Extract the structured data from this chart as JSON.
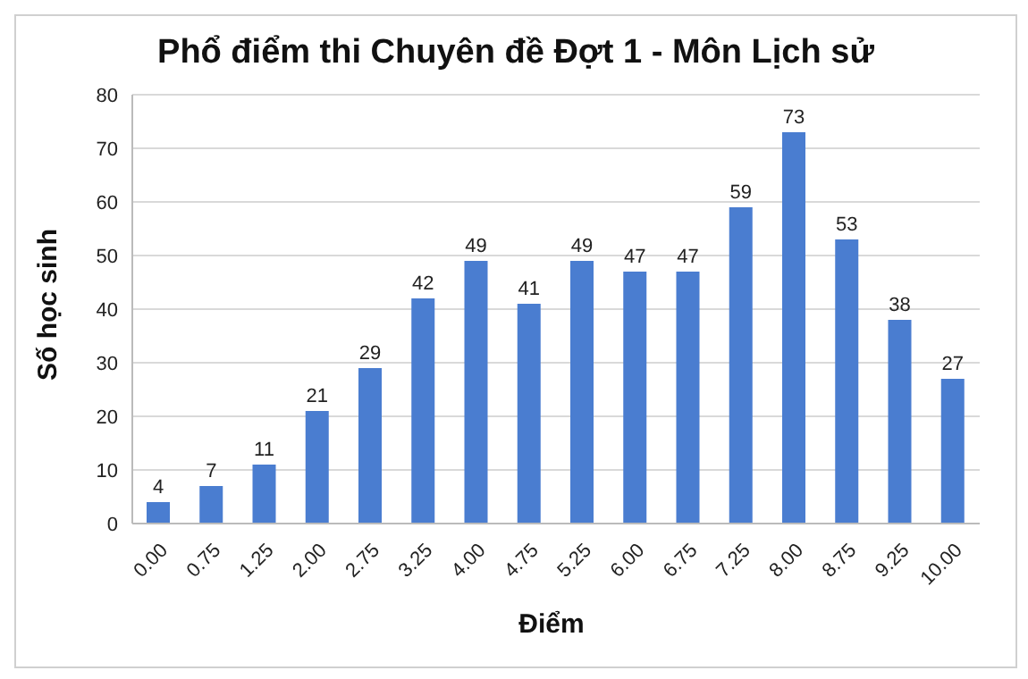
{
  "chart_data": {
    "type": "bar",
    "title": "Phổ điểm thi Chuyên đề Đợt 1 - Môn Lịch sử",
    "xlabel": "Điểm",
    "ylabel": "Số học sinh",
    "categories": [
      "0.00",
      "0.75",
      "1.25",
      "2.00",
      "2.75",
      "3.25",
      "4.00",
      "4.75",
      "5.25",
      "6.00",
      "6.75",
      "7.25",
      "8.00",
      "8.75",
      "9.25",
      "10.00"
    ],
    "values": [
      4,
      7,
      11,
      21,
      29,
      42,
      49,
      41,
      49,
      47,
      47,
      59,
      73,
      53,
      38,
      27
    ],
    "color": "#4a7dd0",
    "ylim": [
      0,
      80
    ],
    "yticks": [
      0,
      10,
      20,
      30,
      40,
      50,
      60,
      70,
      80
    ],
    "grid": "y",
    "data_labels": true
  }
}
